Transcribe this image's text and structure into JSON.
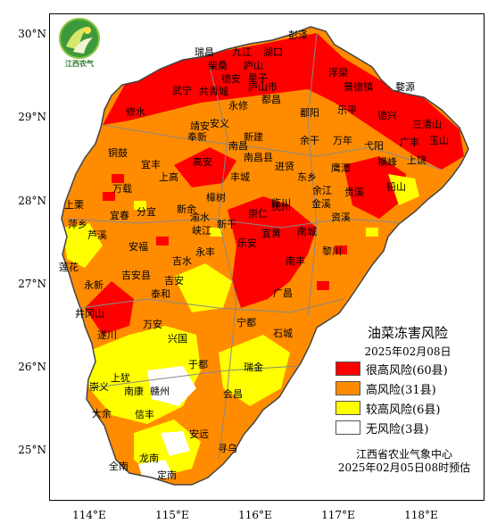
{
  "axes": {
    "lat_labels": [
      "30°N",
      "29°N",
      "28°N",
      "27°N",
      "26°N",
      "25°N"
    ],
    "lon_labels": [
      "114°E",
      "115°E",
      "116°E",
      "117°E",
      "118°E"
    ]
  },
  "logo": {
    "text": "江西农气"
  },
  "legend": {
    "title": "油菜冻害风险",
    "date": "2025年02月08日",
    "items": [
      {
        "label": "很高风险(60县)",
        "color": "#ff0000"
      },
      {
        "label": "高风险(31县)",
        "color": "#ff8c00"
      },
      {
        "label": "较高风险(6县)",
        "color": "#ffff00"
      },
      {
        "label": "无风险(3县)",
        "color": "#ffffff"
      }
    ]
  },
  "footer": {
    "org": "江西省农业气象中心",
    "issued": "2025年02月05日08时预估"
  },
  "counties": [
    "彭泽",
    "湖口",
    "九江",
    "瑞昌",
    "柴桑",
    "庐山",
    "德安",
    "星子",
    "庐山市",
    "都昌",
    "浮梁",
    "景德镇",
    "婺源",
    "武宁",
    "共青城",
    "永修",
    "鄱阳",
    "乐平",
    "德兴",
    "三清山",
    "玉山",
    "修水",
    "安义",
    "靖安",
    "新建",
    "南昌",
    "余干",
    "万年",
    "弋阳",
    "广丰",
    "上饶",
    "铜鼓",
    "奉新",
    "南昌县",
    "进贤",
    "鹰潭",
    "横峰",
    "宜丰",
    "高安",
    "丰城",
    "东乡",
    "余江",
    "贵溪",
    "铅山",
    "万载",
    "上高",
    "樟树",
    "临川",
    "金溪",
    "资溪",
    "上栗",
    "宜春",
    "分宜",
    "新余",
    "渝水",
    "崇仁",
    "萍乡",
    "芦溪",
    "峡江",
    "新干",
    "抚州",
    "宜黄",
    "南城",
    "安福",
    "永丰",
    "乐安",
    "黎川",
    "莲花",
    "吉安县",
    "吉水",
    "南丰",
    "永新",
    "井冈山",
    "泰和",
    "吉安",
    "广昌",
    "遂川",
    "万安",
    "宁都",
    "石城",
    "兴国",
    "于都",
    "瑞金",
    "上犹",
    "赣州",
    "南康",
    "崇义",
    "会昌",
    "大余",
    "信丰",
    "安远",
    "寻乌",
    "龙南",
    "全南",
    "定南"
  ]
}
